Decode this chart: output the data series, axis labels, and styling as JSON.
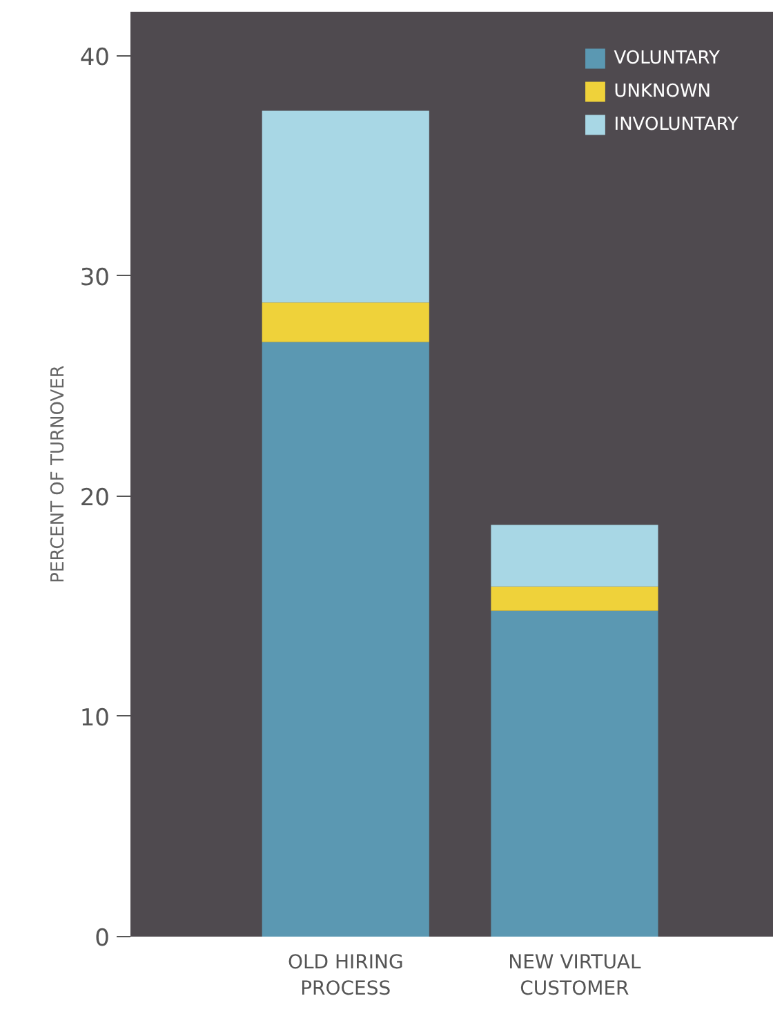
{
  "chart_data": {
    "type": "bar",
    "stacked": true,
    "ylabel": "PERCENT OF TURNOVER",
    "categories": [
      "OLD HIRING\nPROCESS",
      "NEW VIRTUAL\nCUSTOMER"
    ],
    "series": [
      {
        "name": "VOLUNTARY",
        "color": "#5b98b2",
        "values": [
          27.0,
          14.8
        ]
      },
      {
        "name": "UNKNOWN",
        "color": "#efd23a",
        "values": [
          1.8,
          1.1
        ]
      },
      {
        "name": "INVOLUNTARY",
        "color": "#a8d7e5",
        "values": [
          8.7,
          2.8
        ]
      }
    ],
    "ylim": [
      0,
      42
    ],
    "yticks": [
      0,
      10,
      20,
      30,
      40
    ],
    "grid": false,
    "legend": "top right"
  }
}
